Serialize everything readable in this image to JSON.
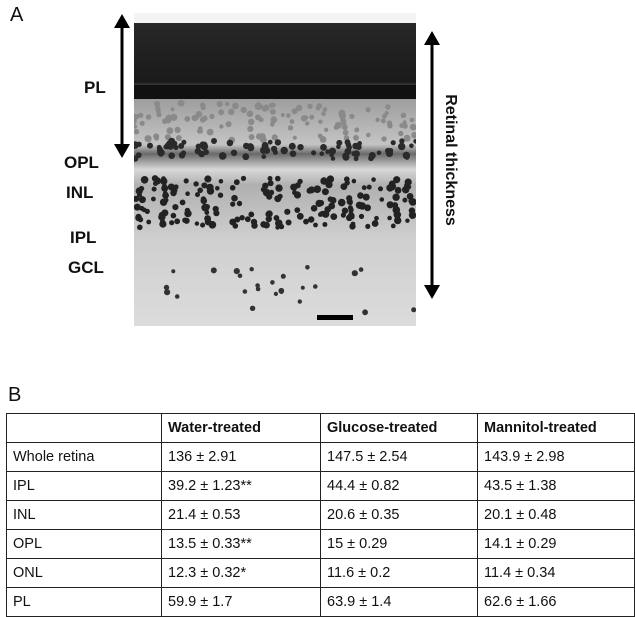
{
  "panel_a": {
    "letter": "A",
    "layer_labels": {
      "pl": "PL",
      "opl": "OPL",
      "inl": "INL",
      "ipl": "IPL",
      "gcl": "GCL"
    },
    "thickness_label": "Retinal thickness"
  },
  "panel_b": {
    "letter": "B",
    "table": {
      "headers": [
        "",
        "Water-treated",
        "Glucose-treated",
        "Mannitol-treated"
      ],
      "rows": [
        [
          "Whole retina",
          "136 ± 2.91",
          "147.5 ± 2.54",
          "143.9 ± 2.98"
        ],
        [
          "IPL",
          "39.2 ± 1.23**",
          "44.4 ± 0.82",
          "43.5 ± 1.38"
        ],
        [
          "INL",
          "21.4 ± 0.53",
          "20.6 ± 0.35",
          "20.1 ± 0.48"
        ],
        [
          "OPL",
          "13.5 ± 0.33**",
          "15 ± 0.29",
          "14.1 ± 0.29"
        ],
        [
          "ONL",
          "12.3 ± 0.32*",
          "11.6 ± 0.2",
          "11.4 ± 0.34"
        ],
        [
          "PL",
          "59.9 ± 1.7",
          "63.9 ± 1.4",
          "62.6 ± 1.66"
        ]
      ]
    }
  }
}
